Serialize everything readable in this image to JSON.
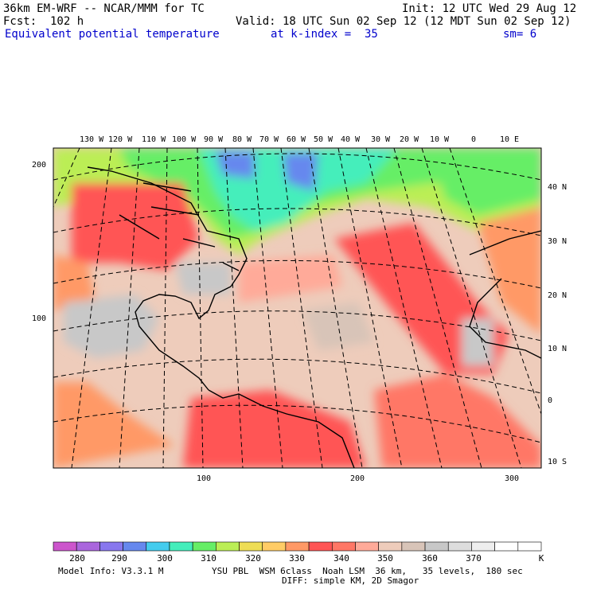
{
  "header": {
    "model_title": "36km EM-WRF -- NCAR/MMM for TC",
    "init": "Init: 12 UTC Wed 29 Aug 12",
    "forecast": "Fcst:  102 h",
    "valid": "Valid: 18 UTC Sun 02 Sep 12 (12 MDT Sun 02 Sep 12)",
    "field": "Equivalent potential temperature",
    "level": "at k-index =  35",
    "smoothing": "sm= 6"
  },
  "map": {
    "top_longitudes": [
      "130 W",
      "120 W",
      "110 W",
      "100 W",
      "90 W",
      "80 W",
      "70 W",
      "60 W",
      "50 W",
      "40 W",
      "30 W",
      "20 W",
      "10 W",
      "0",
      "10 E"
    ],
    "right_latitudes": [
      "40 N",
      "30 N",
      "20 N",
      "10 N",
      "0",
      "10 S"
    ],
    "left_grid_ticks": [
      "200",
      "100"
    ],
    "bottom_grid_ticks": [
      "100",
      "200",
      "300"
    ]
  },
  "colorbar": {
    "labels": [
      "280",
      "290",
      "300",
      "310",
      "320",
      "330",
      "340",
      "350",
      "360",
      "370",
      "K"
    ],
    "colors": [
      "#cc55cc",
      "#aa66dd",
      "#8877ee",
      "#6688ee",
      "#44ccee",
      "#44eebb",
      "#66ee66",
      "#bbee55",
      "#eedd55",
      "#ffcc66",
      "#ff9966",
      "#ff5555",
      "#ff7766",
      "#ffaa99",
      "#eeccbb",
      "#d8c4b8",
      "#c8c8c8",
      "#dddddd",
      "#eeeeee",
      "#ffffff",
      "#ffffff"
    ]
  },
  "footer": {
    "model_info": "Model Info: V3.3.1 M",
    "physics": "YSU PBL  WSM 6class  Noah LSM  36 km,   35 levels,  180 sec",
    "diffusion": "DIFF: simple KM, 2D Smagor"
  }
}
